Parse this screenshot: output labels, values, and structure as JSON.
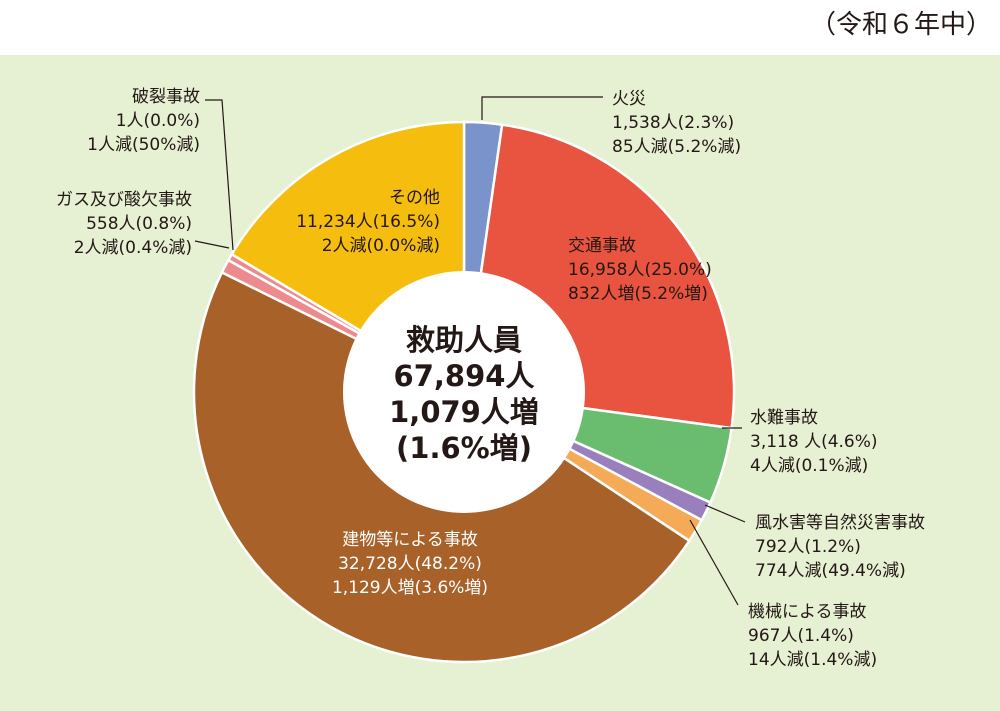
{
  "period_label": "（令和６年中）",
  "chart_data": {
    "type": "pie",
    "center_text": [
      "救助人員",
      "67,894人",
      "1,079人増",
      "(1.6%増)"
    ],
    "slices": [
      {
        "name": "火災",
        "value": 1538,
        "percent": 2.3,
        "change": "85人減(5.2%減)",
        "value_text": "1,538人(2.3%)",
        "color": "#7b93cb"
      },
      {
        "name": "交通事故",
        "value": 16958,
        "percent": 25.0,
        "change": "832人増(5.2%増)",
        "value_text": "16,958人(25.0%)",
        "color": "#e8543f"
      },
      {
        "name": "水難事故",
        "value": 3118,
        "percent": 4.6,
        "change": "4人減(0.1%減)",
        "value_text": "3,118 人(4.6%)",
        "color": "#6abd6e"
      },
      {
        "name": "風水害等自然災害事故",
        "value": 792,
        "percent": 1.2,
        "change": "774人減(49.4%減)",
        "value_text": "792人(1.2%)",
        "color": "#9980bd"
      },
      {
        "name": "機械による事故",
        "value": 967,
        "percent": 1.4,
        "change": "14人減(1.4%減)",
        "value_text": "967人(1.4%)",
        "color": "#f5aa58"
      },
      {
        "name": "建物等による事故",
        "value": 32728,
        "percent": 48.2,
        "change": "1,129人増(3.6%増)",
        "value_text": "32,728人(48.2%)",
        "color": "#a9612a"
      },
      {
        "name": "ガス及び酸欠事故",
        "value": 558,
        "percent": 0.8,
        "change": "2人減(0.4%減)",
        "value_text": "558人(0.8%)",
        "color": "#ec8a8e"
      },
      {
        "name": "破裂事故",
        "value": 1,
        "percent": 0.0,
        "change": "1人減(50%減)",
        "value_text": "1人(0.0%)",
        "color": "#ec8a8e"
      },
      {
        "name": "その他",
        "value": 11234,
        "percent": 16.5,
        "change": "2人減(0.0%減)",
        "value_text": "11,234人(16.5%)",
        "color": "#f5bd0d"
      }
    ]
  }
}
